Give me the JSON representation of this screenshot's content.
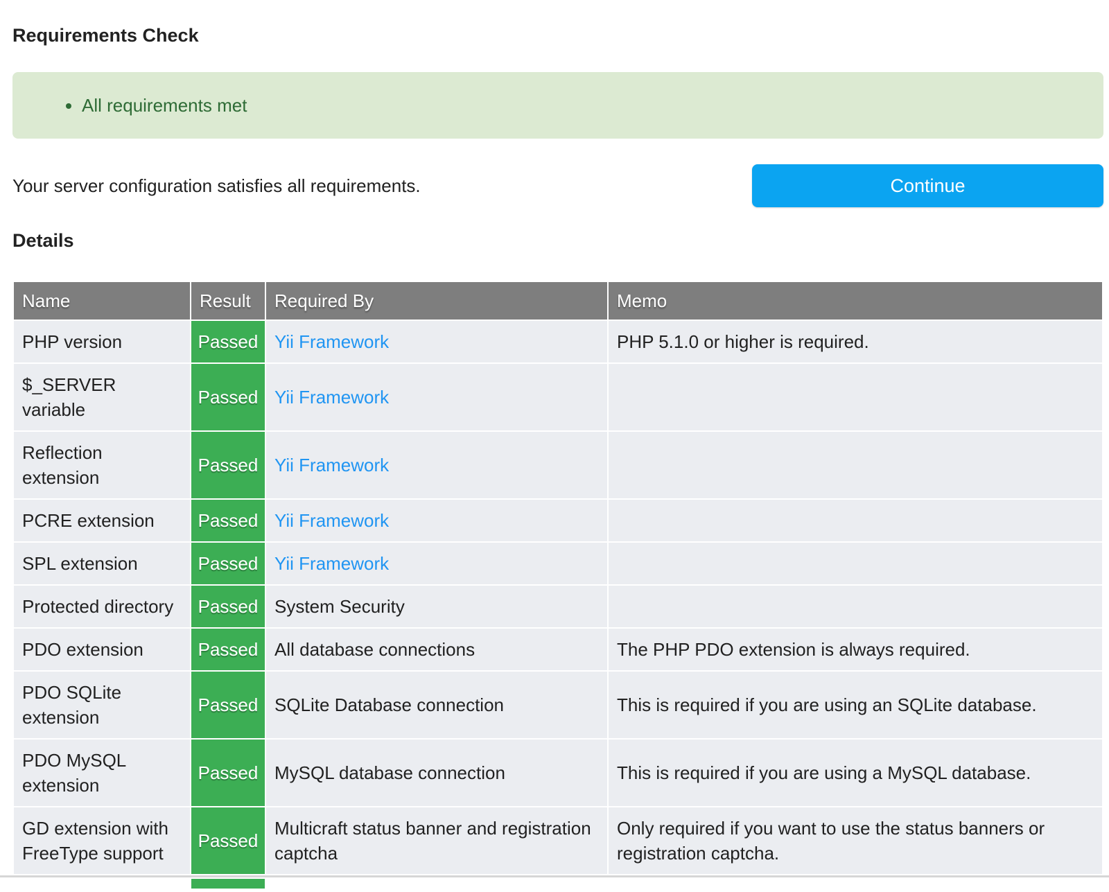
{
  "page": {
    "title": "Requirements Check",
    "alert": {
      "items": [
        "All requirements met"
      ]
    },
    "summary": "Your server configuration satisfies all requirements.",
    "continue_label": "Continue",
    "details_heading": "Details"
  },
  "table": {
    "columns": [
      "Name",
      "Result",
      "Required By",
      "Memo"
    ],
    "rows": [
      {
        "name": "PHP version",
        "result": "Passed",
        "required_by": "Yii Framework",
        "required_by_link": true,
        "memo": "PHP 5.1.0 or higher is required."
      },
      {
        "name": "$_SERVER variable",
        "result": "Passed",
        "required_by": "Yii Framework",
        "required_by_link": true,
        "memo": ""
      },
      {
        "name": "Reflection extension",
        "result": "Passed",
        "required_by": "Yii Framework",
        "required_by_link": true,
        "memo": ""
      },
      {
        "name": "PCRE extension",
        "result": "Passed",
        "required_by": "Yii Framework",
        "required_by_link": true,
        "memo": ""
      },
      {
        "name": "SPL extension",
        "result": "Passed",
        "required_by": "Yii Framework",
        "required_by_link": true,
        "memo": ""
      },
      {
        "name": "Protected directory",
        "result": "Passed",
        "required_by": "System Security",
        "required_by_link": false,
        "memo": ""
      },
      {
        "name": "PDO extension",
        "result": "Passed",
        "required_by": "All database connections",
        "required_by_link": false,
        "memo": "The PHP PDO extension is always required."
      },
      {
        "name": "PDO SQLite extension",
        "result": "Passed",
        "required_by": "SQLite Database connection",
        "required_by_link": false,
        "memo": "This is required if you are using an SQLite database."
      },
      {
        "name": "PDO MySQL extension",
        "result": "Passed",
        "required_by": "MySQL database connection",
        "required_by_link": false,
        "memo": "This is required if you are using a MySQL database."
      },
      {
        "name": "GD extension with FreeType support",
        "result": "Passed",
        "required_by": "Multicraft status banner and registration captcha",
        "required_by_link": false,
        "memo": "Only required if you want to use the status banners or registration captcha."
      }
    ]
  },
  "colors": {
    "success_bg": "#dcead2",
    "success_text": "#2e6b35",
    "header_bg": "#7e7e7e",
    "row_bg": "#ebedf1",
    "passed_bg": "#3cae54",
    "passed_text": "#ffffff",
    "link": "#2095f2",
    "button_bg": "#0ba4f1",
    "button_text": "#ffffff",
    "text": "#212121"
  }
}
